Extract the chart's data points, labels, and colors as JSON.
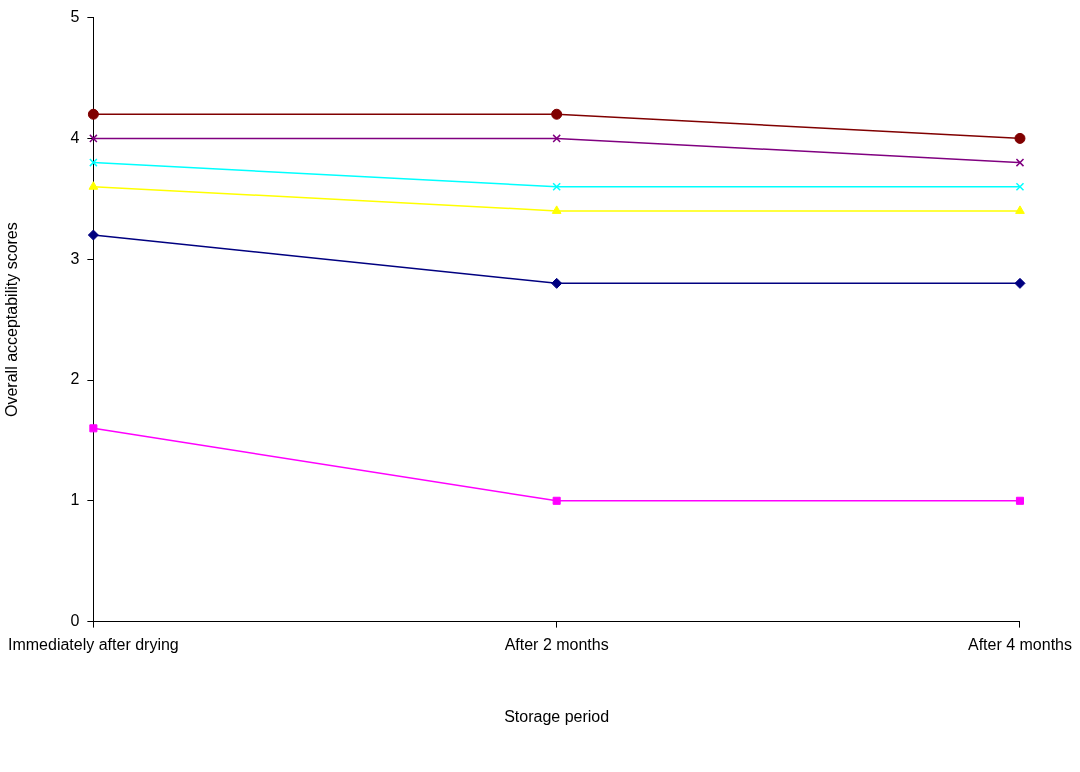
{
  "chart_data": {
    "type": "line",
    "xlabel": "Storage period",
    "ylabel": "Overall acceptability scores",
    "categories": [
      "Immediately after drying",
      "After 2 months",
      "After 4 months"
    ],
    "ylim": [
      0,
      5
    ],
    "yticks": [
      0,
      1,
      2,
      3,
      4,
      5
    ],
    "grid": false,
    "legend": false,
    "series": [
      {
        "color": "#800000",
        "marker": "circle",
        "values": [
          4.2,
          4.2,
          4.0
        ]
      },
      {
        "color": "#800080",
        "marker": "cross",
        "values": [
          4.0,
          4.0,
          3.8
        ]
      },
      {
        "color": "#00ffff",
        "marker": "cross",
        "values": [
          3.8,
          3.6,
          3.6
        ]
      },
      {
        "color": "#ffff00",
        "marker": "triangle",
        "values": [
          3.6,
          3.4,
          3.4
        ]
      },
      {
        "color": "#000080",
        "marker": "diamond",
        "values": [
          3.2,
          2.8,
          2.8
        ]
      },
      {
        "color": "#ff00ff",
        "marker": "square",
        "values": [
          1.6,
          1.0,
          1.0
        ]
      }
    ]
  }
}
